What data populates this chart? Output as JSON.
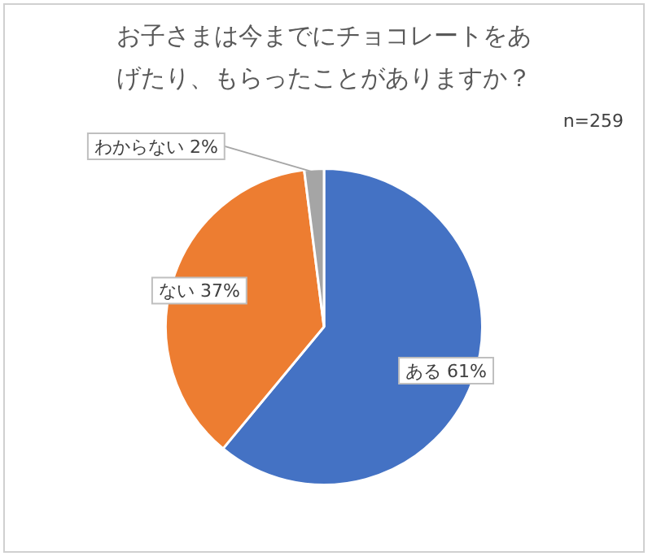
{
  "chart_data": {
    "type": "pie",
    "title": "お子さまは今までにチョコレートをあげたり、もらったことがありますか？",
    "annotations": [
      "n=259"
    ],
    "categories": [
      "ある",
      "ない",
      "わからない"
    ],
    "values": [
      61,
      37,
      2
    ],
    "colors": [
      "#4472c4",
      "#ed7d31",
      "#a5a5a5"
    ],
    "value_labels": [
      "61%",
      "37%",
      "2%"
    ],
    "legend": false
  }
}
